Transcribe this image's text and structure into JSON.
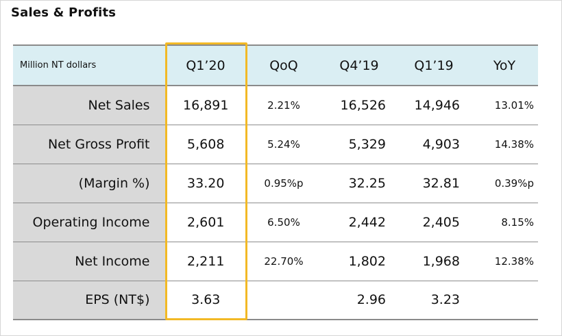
{
  "title": "Sales & Profits",
  "colors": {
    "header_bg": "#daeef3",
    "label_bg": "#d9d9d9",
    "highlight": "#f2b925"
  },
  "chart_data": {
    "type": "table",
    "title": "Sales & Profits",
    "unit": "Million NT dollars",
    "columns": [
      "Q1’20",
      "QoQ",
      "Q4’19",
      "Q1’19",
      "YoY"
    ],
    "highlighted_column": "Q1’20",
    "rows": [
      {
        "label": "Net Sales",
        "values": [
          "16,891",
          "2.21%",
          "16,526",
          "14,946",
          "13.01%"
        ]
      },
      {
        "label": "Net Gross Profit",
        "values": [
          "5,608",
          "5.24%",
          "5,329",
          "4,903",
          "14.38%"
        ]
      },
      {
        "label": "(Margin %)",
        "values": [
          "33.20",
          "0.95%p",
          "32.25",
          "32.81",
          "0.39%p"
        ]
      },
      {
        "label": "Operating Income",
        "values": [
          "2,601",
          "6.50%",
          "2,442",
          "2,405",
          "8.15%"
        ]
      },
      {
        "label": "Net Income",
        "values": [
          "2,211",
          "22.70%",
          "1,802",
          "1,968",
          "12.38%"
        ]
      },
      {
        "label": "EPS (NT$)",
        "values": [
          "3.63",
          "",
          "2.96",
          "3.23",
          ""
        ]
      }
    ]
  }
}
